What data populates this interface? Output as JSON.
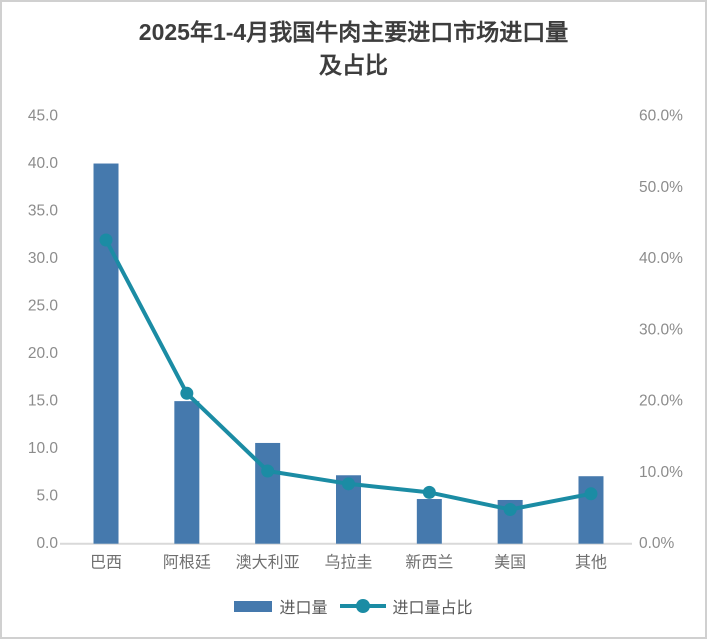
{
  "title": {
    "full": "2025年1-4月我国牛肉主要进口市场进口量及占比",
    "line1": "2025年1-4月我国牛肉主要进口市场进口量",
    "line2": "及占比"
  },
  "colors": {
    "bar": "#4579ad",
    "line": "#1b8ca4",
    "axis_line": "#d9d9d9",
    "tick_text": "#8c8c8c",
    "category_text": "#6f6f6f",
    "title_text": "#3d3d3d",
    "frame_border": "#d0d0d0"
  },
  "chart_data": {
    "type": "bar",
    "subtype": "combo-bar-line-dual-axis",
    "title": "2025年1-4月我国牛肉主要进口市场进口量及占比",
    "categories": [
      "巴西",
      "阿根廷",
      "澳大利亚",
      "乌拉圭",
      "新西兰",
      "美国",
      "其他"
    ],
    "series": [
      {
        "name": "进口量",
        "type": "bar",
        "axis": "left",
        "color": "#4579ad",
        "values": [
          40.0,
          15.0,
          10.6,
          7.2,
          4.7,
          4.6,
          7.1
        ]
      },
      {
        "name": "进口量占比",
        "type": "line",
        "axis": "right",
        "color": "#1b8ca4",
        "unit": "%",
        "values": [
          42.6,
          21.1,
          10.2,
          8.4,
          7.2,
          4.8,
          7.0
        ]
      }
    ],
    "left_axis": {
      "min": 0,
      "max": 45,
      "tick_labels": [
        "0.0",
        "5.0",
        "10.0",
        "15.0",
        "20.0",
        "25.0",
        "30.0",
        "35.0",
        "40.0",
        "45.0"
      ]
    },
    "right_axis": {
      "min": 0,
      "max": 60,
      "tick_labels": [
        "0.0%",
        "10.0%",
        "20.0%",
        "30.0%",
        "40.0%",
        "50.0%",
        "60.0%"
      ]
    },
    "grid": false,
    "legend_position": "bottom"
  }
}
